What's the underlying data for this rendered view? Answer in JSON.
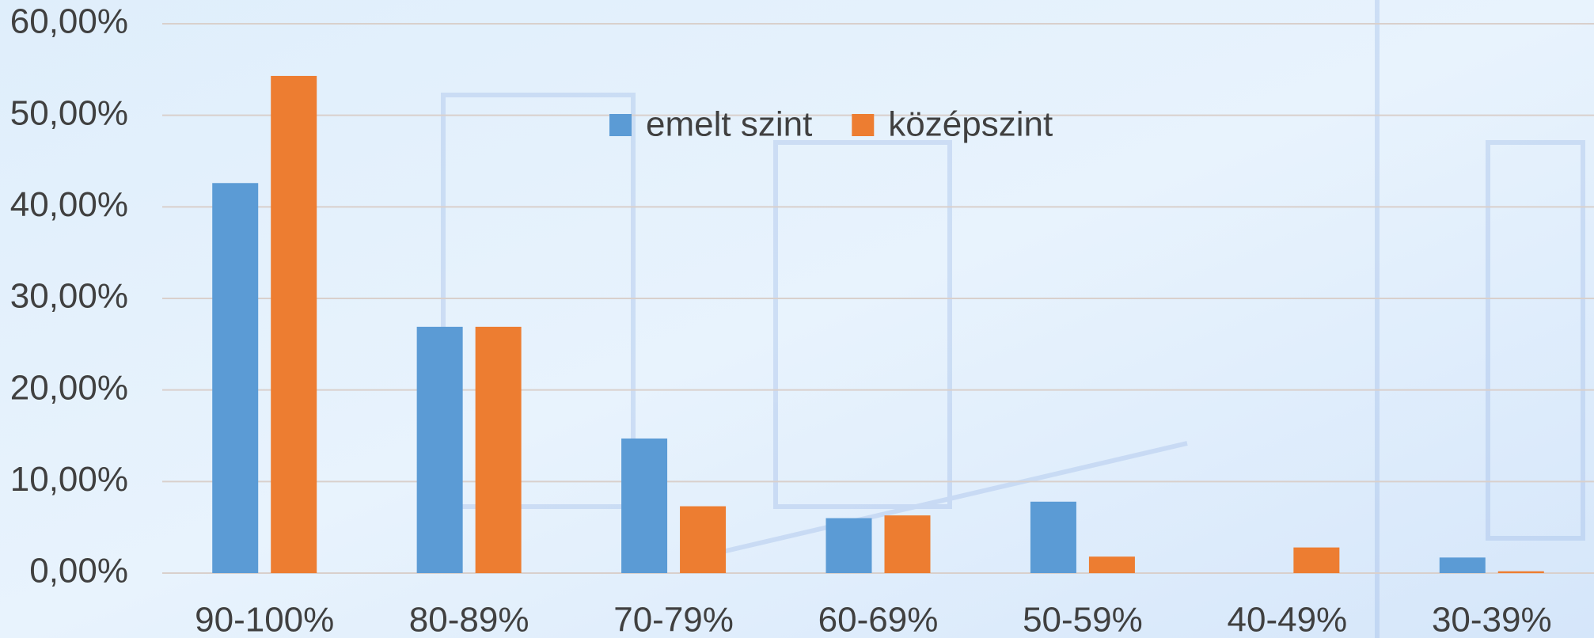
{
  "chart_data": {
    "type": "bar",
    "categories": [
      "90-100%",
      "80-89%",
      "70-79%",
      "60-69%",
      "50-59%",
      "40-49%",
      "30-39%"
    ],
    "series": [
      {
        "name": "emelt szint",
        "color": "#5b9bd5",
        "values": [
          42.6,
          26.9,
          14.7,
          6.0,
          7.8,
          0,
          1.7
        ]
      },
      {
        "name": "középszint",
        "color": "#ed7d31",
        "values": [
          54.3,
          26.9,
          7.3,
          6.3,
          1.8,
          2.8,
          0.2
        ]
      }
    ],
    "ylim": [
      0,
      60
    ],
    "yticks": [
      {
        "value": 0,
        "label": "0,00%"
      },
      {
        "value": 10,
        "label": "10,00%"
      },
      {
        "value": 20,
        "label": "20,00%"
      },
      {
        "value": 30,
        "label": "30,00%"
      },
      {
        "value": 40,
        "label": "40,00%"
      },
      {
        "value": 50,
        "label": "50,00%"
      },
      {
        "value": 60,
        "label": "60,00%"
      }
    ],
    "grid": true,
    "legend": "top"
  }
}
